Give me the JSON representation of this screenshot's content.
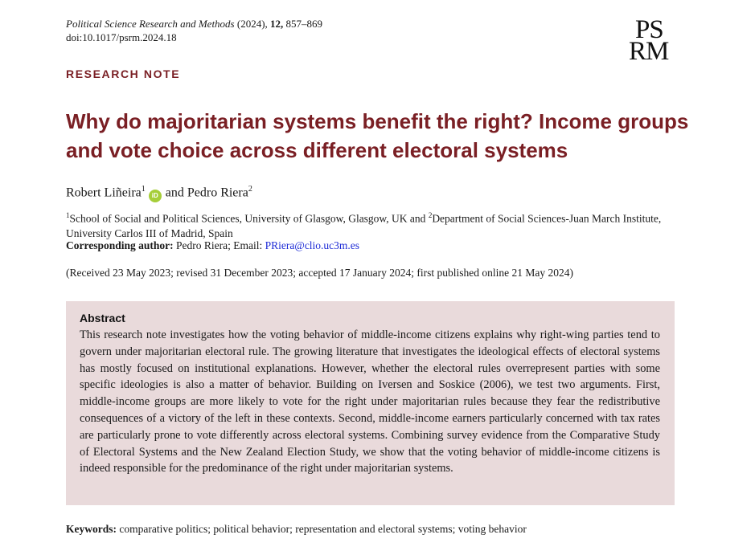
{
  "header": {
    "journal_name": "Political Science Research and Methods",
    "year": "(2024),",
    "volume": "12,",
    "pages": "857–869",
    "doi": "doi:10.1017/psrm.2024.18",
    "logo_line1": "PS",
    "logo_line2": "RM"
  },
  "article": {
    "type": "RESEARCH NOTE",
    "title": "Why do majoritarian systems benefit the right? Income groups and vote choice across different electoral systems",
    "author1": "Robert Liñeira",
    "author1_sup": "1",
    "orcid_label": "iD",
    "and": "and",
    "author2": "Pedro Riera",
    "author2_sup": "2",
    "affil_sup1": "1",
    "affil1": "School of Social and Political Sciences, University of Glasgow, Glasgow, UK and ",
    "affil_sup2": "2",
    "affil2": "Department of Social Sciences-Juan March Institute, University Carlos III of Madrid, Spain",
    "corr_label": "Corresponding author:",
    "corr_text": "Pedro Riera; Email:",
    "corr_email": "PRiera@clio.uc3m.es",
    "received": "(Received 23 May 2023; revised 31 December 2023; accepted 17 January 2024; first published online 21 May 2024)"
  },
  "abstract": {
    "heading": "Abstract",
    "text": "This research note investigates how the voting behavior of middle-income citizens explains why right-wing parties tend to govern under majoritarian electoral rule. The growing literature that investigates the ideo­logical effects of electoral systems has mostly focused on institutional explanations. However, whether the electoral rules overrepresent parties with some specific ideologies is also a matter of behavior. Building on Iversen and Soskice (2006), we test two arguments. First, middle-income groups are more likely to vote for the right under majoritarian rules because they fear the redistributive consequences of a victory of the left in these contexts. Second, middle-income earners particularly concerned with tax rates are par­ticularly prone to vote differently across electoral systems. Combining survey evidence from the Comparative Study of Electoral Systems and the New Zealand Election Study, we show that the voting behavior of middle-income citizens is indeed responsible for the predominance of the right under majoritarian systems."
  },
  "keywords": {
    "label": "Keywords:",
    "text": "comparative politics; political behavior; representation and electoral systems; voting behavior"
  },
  "colors": {
    "accent": "#7a1f24",
    "abstract_bg": "#e9dadb",
    "link": "#1d2bd6",
    "orcid": "#a6ce39"
  }
}
